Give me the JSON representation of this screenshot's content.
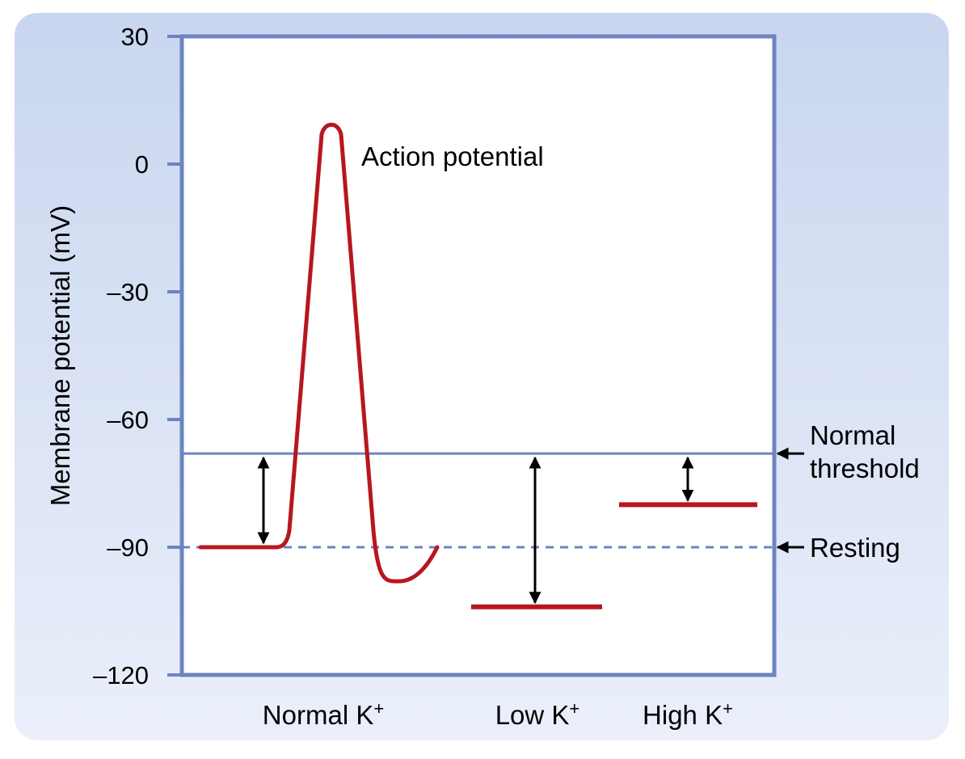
{
  "chart_data": {
    "type": "line",
    "ylabel": "Membrane potential (mV)",
    "ylim": [
      -120,
      30
    ],
    "yticks": [
      30,
      0,
      -30,
      -60,
      -90,
      -120
    ],
    "ytick_labels": [
      "30",
      "0",
      "–30",
      "–60",
      "–90",
      "–120"
    ],
    "categories": [
      {
        "name": "Normal K",
        "sup": "+"
      },
      {
        "name": "Low K",
        "sup": "+"
      },
      {
        "name": "High K",
        "sup": "+"
      }
    ],
    "reference_lines": [
      {
        "name": "Normal threshold",
        "label_lines": [
          "Normal",
          "threshold"
        ],
        "value": -68,
        "style": "solid"
      },
      {
        "name": "Resting",
        "label_lines": [
          "Resting"
        ],
        "value": -90,
        "style": "dashed"
      }
    ],
    "resting_levels": [
      {
        "category": "Normal K+",
        "value": -90
      },
      {
        "category": "Low K+",
        "value": -104
      },
      {
        "category": "High K+",
        "value": -80
      }
    ],
    "action_potential": {
      "label": "Action potential",
      "peak": 10,
      "undershoot": -98,
      "baseline": -90
    },
    "grid": false,
    "colors": {
      "axis": "#6d84c2",
      "trace": "#b8161f",
      "arrow": "#000000",
      "panel": "#d6e0f3"
    }
  }
}
